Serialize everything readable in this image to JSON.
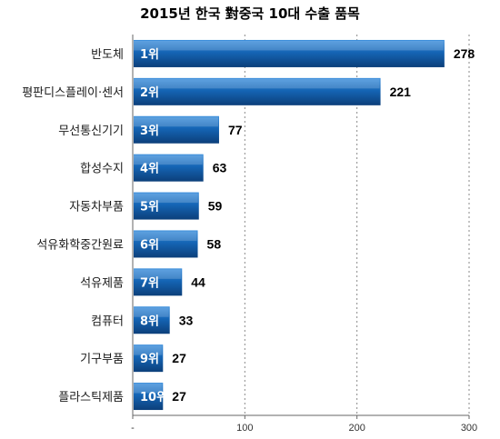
{
  "chart_data": {
    "type": "bar",
    "orientation": "horizontal",
    "title": "2015년 한국 對중국 10대 수출 품목",
    "categories": [
      "반도체",
      "평판디스플레이·센서",
      "무선통신기기",
      "합성수지",
      "자동차부품",
      "석유화학중간원료",
      "석유제품",
      "컴퓨터",
      "기구부품",
      "플라스틱제품"
    ],
    "ranks": [
      "1위",
      "2위",
      "3위",
      "4위",
      "5위",
      "6위",
      "7위",
      "8위",
      "9위",
      "10위"
    ],
    "values": [
      278,
      221,
      77,
      63,
      59,
      58,
      44,
      33,
      27,
      27
    ],
    "value_labels": [
      "278",
      "221",
      "77",
      "63",
      "59",
      "58",
      "44",
      "33",
      "27",
      "27"
    ],
    "xlim": [
      0,
      300
    ],
    "xticks": [
      "-",
      "100",
      "200",
      "300"
    ],
    "xtick_values": [
      0,
      100,
      200,
      300
    ],
    "grid": "vertical-dashed",
    "bar_color": "#1565b5"
  }
}
